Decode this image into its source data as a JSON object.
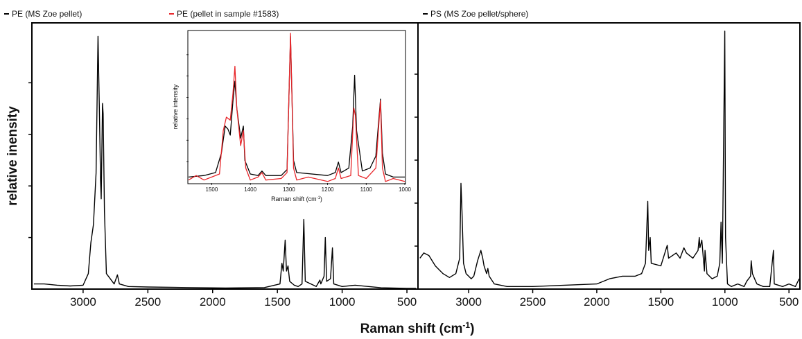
{
  "figure": {
    "ylabel": "relative inensity",
    "xlabel": "Raman shift (cm",
    "xlabel_sup": "-1",
    "xlabel_close": ")"
  },
  "chart_data": [
    {
      "type": "line",
      "legend": [
        "PE (MS Zoe pellet)",
        "PE (pellet in sample #1583)"
      ],
      "series": [
        {
          "name": "PE (MS Zoe pellet)",
          "color": "#000000",
          "points": [
            [
              3380,
              0.02
            ],
            [
              3300,
              0.02
            ],
            [
              3200,
              0.015
            ],
            [
              3100,
              0.012
            ],
            [
              3000,
              0.015
            ],
            [
              2960,
              0.06
            ],
            [
              2940,
              0.18
            ],
            [
              2920,
              0.25
            ],
            [
              2900,
              0.45
            ],
            [
              2885,
              0.98
            ],
            [
              2875,
              0.72
            ],
            [
              2865,
              0.42
            ],
            [
              2860,
              0.35
            ],
            [
              2850,
              0.72
            ],
            [
              2845,
              0.68
            ],
            [
              2835,
              0.3
            ],
            [
              2820,
              0.06
            ],
            [
              2760,
              0.02
            ],
            [
              2735,
              0.055
            ],
            [
              2720,
              0.02
            ],
            [
              2650,
              0.01
            ],
            [
              2500,
              0.008
            ],
            [
              2200,
              0.006
            ],
            [
              1900,
              0.004
            ],
            [
              1600,
              0.006
            ],
            [
              1480,
              0.02
            ],
            [
              1465,
              0.1
            ],
            [
              1455,
              0.07
            ],
            [
              1440,
              0.19
            ],
            [
              1430,
              0.07
            ],
            [
              1418,
              0.09
            ],
            [
              1405,
              0.03
            ],
            [
              1370,
              0.015
            ],
            [
              1340,
              0.01
            ],
            [
              1310,
              0.02
            ],
            [
              1296,
              0.27
            ],
            [
              1285,
              0.03
            ],
            [
              1200,
              0.01
            ],
            [
              1172,
              0.035
            ],
            [
              1165,
              0.02
            ],
            [
              1140,
              0.05
            ],
            [
              1130,
              0.2
            ],
            [
              1120,
              0.03
            ],
            [
              1090,
              0.04
            ],
            [
              1075,
              0.16
            ],
            [
              1065,
              0.02
            ],
            [
              1000,
              0.01
            ],
            [
              900,
              0.015
            ],
            [
              700,
              0.005
            ],
            [
              500,
              0.003
            ],
            [
              430,
              0.003
            ]
          ]
        }
      ],
      "xlim": [
        3390,
        420
      ],
      "xticks": [
        3000,
        2500,
        2000,
        1500,
        1000,
        500
      ],
      "xtick_labels": [
        "3000",
        "2500",
        "2000",
        "1500",
        "1000",
        "500"
      ],
      "ylim": [
        0,
        1
      ]
    },
    {
      "type": "line",
      "inset": true,
      "ylabel": "relative intensity",
      "xlabel": "Raman shift (cm",
      "xlabel_sup": "-1",
      "xlabel_close": ")",
      "xlim": [
        1560,
        1000
      ],
      "xticks": [
        1500,
        1400,
        1300,
        1200,
        1100,
        1000
      ],
      "xtick_labels": [
        "1500",
        "1400",
        "1300",
        "1200",
        "1100",
        "1000"
      ],
      "ylim": [
        0,
        1
      ],
      "series": [
        {
          "name": "PE (MS Zoe pellet)",
          "color": "#000000",
          "points": [
            [
              1560,
              0.04
            ],
            [
              1520,
              0.05
            ],
            [
              1490,
              0.07
            ],
            [
              1475,
              0.2
            ],
            [
              1465,
              0.38
            ],
            [
              1458,
              0.36
            ],
            [
              1452,
              0.32
            ],
            [
              1445,
              0.55
            ],
            [
              1440,
              0.68
            ],
            [
              1435,
              0.5
            ],
            [
              1425,
              0.3
            ],
            [
              1418,
              0.38
            ],
            [
              1414,
              0.15
            ],
            [
              1400,
              0.06
            ],
            [
              1380,
              0.05
            ],
            [
              1370,
              0.08
            ],
            [
              1360,
              0.05
            ],
            [
              1320,
              0.05
            ],
            [
              1305,
              0.09
            ],
            [
              1296,
              0.98
            ],
            [
              1288,
              0.15
            ],
            [
              1280,
              0.07
            ],
            [
              1200,
              0.05
            ],
            [
              1180,
              0.07
            ],
            [
              1172,
              0.14
            ],
            [
              1165,
              0.07
            ],
            [
              1145,
              0.1
            ],
            [
              1135,
              0.38
            ],
            [
              1130,
              0.72
            ],
            [
              1125,
              0.35
            ],
            [
              1110,
              0.08
            ],
            [
              1090,
              0.1
            ],
            [
              1075,
              0.18
            ],
            [
              1063,
              0.56
            ],
            [
              1058,
              0.2
            ],
            [
              1050,
              0.06
            ],
            [
              1030,
              0.04
            ],
            [
              1000,
              0.04
            ]
          ]
        },
        {
          "name": "PE (pellet in sample #1583)",
          "color": "#e8262a",
          "points": [
            [
              1560,
              0.02
            ],
            [
              1540,
              0.05
            ],
            [
              1520,
              0.02
            ],
            [
              1500,
              0.04
            ],
            [
              1480,
              0.06
            ],
            [
              1470,
              0.35
            ],
            [
              1462,
              0.44
            ],
            [
              1452,
              0.42
            ],
            [
              1445,
              0.6
            ],
            [
              1440,
              0.78
            ],
            [
              1435,
              0.5
            ],
            [
              1425,
              0.25
            ],
            [
              1418,
              0.35
            ],
            [
              1412,
              0.1
            ],
            [
              1400,
              0.02
            ],
            [
              1380,
              0.04
            ],
            [
              1370,
              0.07
            ],
            [
              1360,
              0.02
            ],
            [
              1320,
              0.03
            ],
            [
              1305,
              0.07
            ],
            [
              1296,
              1.0
            ],
            [
              1288,
              0.1
            ],
            [
              1280,
              0.02
            ],
            [
              1250,
              0.04
            ],
            [
              1200,
              0.01
            ],
            [
              1180,
              0.03
            ],
            [
              1172,
              0.1
            ],
            [
              1165,
              0.03
            ],
            [
              1140,
              0.05
            ],
            [
              1132,
              0.5
            ],
            [
              1128,
              0.45
            ],
            [
              1120,
              0.05
            ],
            [
              1100,
              0.03
            ],
            [
              1075,
              0.1
            ],
            [
              1063,
              0.55
            ],
            [
              1058,
              0.1
            ],
            [
              1050,
              0.01
            ],
            [
              1030,
              0.03
            ],
            [
              1000,
              0.01
            ]
          ]
        }
      ]
    },
    {
      "type": "line",
      "legend": [
        "PS (MS Zoe pellet/sphere)"
      ],
      "series": [
        {
          "name": "PS (MS Zoe pellet/sphere)",
          "color": "#000000",
          "points": [
            [
              3380,
              0.12
            ],
            [
              3350,
              0.14
            ],
            [
              3310,
              0.13
            ],
            [
              3260,
              0.09
            ],
            [
              3200,
              0.06
            ],
            [
              3150,
              0.045
            ],
            [
              3100,
              0.06
            ],
            [
              3070,
              0.12
            ],
            [
              3060,
              0.41
            ],
            [
              3052,
              0.3
            ],
            [
              3040,
              0.1
            ],
            [
              3020,
              0.06
            ],
            [
              3000,
              0.05
            ],
            [
              2980,
              0.04
            ],
            [
              2960,
              0.05
            ],
            [
              2930,
              0.11
            ],
            [
              2905,
              0.15
            ],
            [
              2890,
              0.12
            ],
            [
              2880,
              0.09
            ],
            [
              2860,
              0.06
            ],
            [
              2850,
              0.08
            ],
            [
              2840,
              0.05
            ],
            [
              2800,
              0.02
            ],
            [
              2700,
              0.01
            ],
            [
              2500,
              0.01
            ],
            [
              2000,
              0.02
            ],
            [
              1900,
              0.04
            ],
            [
              1800,
              0.05
            ],
            [
              1700,
              0.05
            ],
            [
              1650,
              0.06
            ],
            [
              1620,
              0.1
            ],
            [
              1602,
              0.34
            ],
            [
              1595,
              0.15
            ],
            [
              1583,
              0.2
            ],
            [
              1575,
              0.1
            ],
            [
              1500,
              0.09
            ],
            [
              1450,
              0.17
            ],
            [
              1440,
              0.12
            ],
            [
              1380,
              0.14
            ],
            [
              1350,
              0.12
            ],
            [
              1320,
              0.16
            ],
            [
              1300,
              0.14
            ],
            [
              1250,
              0.12
            ],
            [
              1210,
              0.15
            ],
            [
              1200,
              0.2
            ],
            [
              1195,
              0.16
            ],
            [
              1180,
              0.19
            ],
            [
              1160,
              0.07
            ],
            [
              1155,
              0.15
            ],
            [
              1140,
              0.06
            ],
            [
              1100,
              0.04
            ],
            [
              1060,
              0.05
            ],
            [
              1040,
              0.1
            ],
            [
              1030,
              0.26
            ],
            [
              1020,
              0.1
            ],
            [
              1001,
              1.0
            ],
            [
              995,
              0.2
            ],
            [
              980,
              0.02
            ],
            [
              950,
              0.01
            ],
            [
              900,
              0.02
            ],
            [
              850,
              0.01
            ],
            [
              840,
              0.02
            ],
            [
              830,
              0.03
            ],
            [
              800,
              0.05
            ],
            [
              795,
              0.11
            ],
            [
              785,
              0.06
            ],
            [
              760,
              0.03
            ],
            [
              750,
              0.02
            ],
            [
              700,
              0.01
            ],
            [
              650,
              0.01
            ],
            [
              621,
              0.15
            ],
            [
              615,
              0.02
            ],
            [
              550,
              0.01
            ],
            [
              500,
              0.02
            ],
            [
              450,
              0.01
            ],
            [
              420,
              0.04
            ]
          ]
        }
      ],
      "xlim": [
        3390,
        420
      ],
      "xticks": [
        3000,
        2500,
        2000,
        1500,
        1000,
        500
      ],
      "xtick_labels": [
        "3000",
        "2500",
        "2000",
        "1500",
        "1000",
        "500"
      ],
      "ylim": [
        0,
        1
      ]
    }
  ]
}
